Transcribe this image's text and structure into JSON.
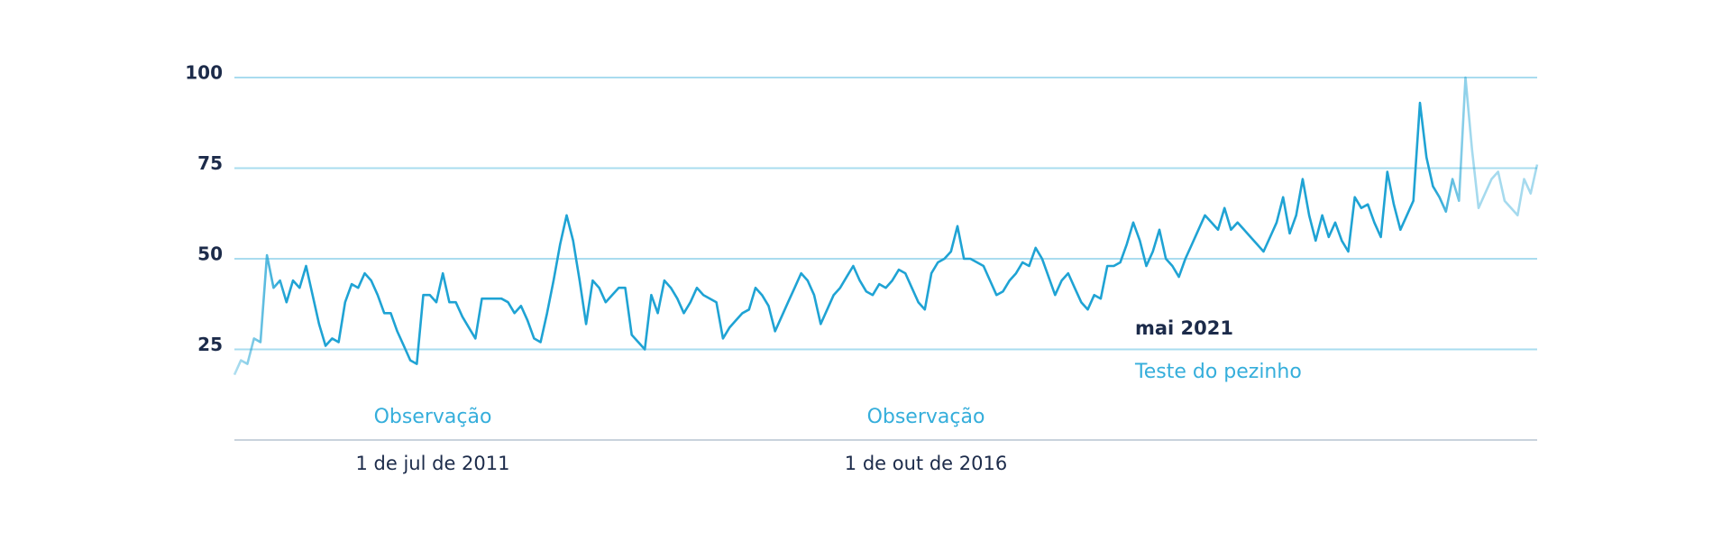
{
  "chart_data": {
    "type": "line",
    "series": [
      {
        "color": "#1fa3d4",
        "values": [
          18,
          22,
          21,
          28,
          27,
          51,
          42,
          44,
          38,
          44,
          42,
          48,
          40,
          32,
          26,
          28,
          27,
          38,
          43,
          42,
          46,
          44,
          40,
          35,
          35,
          30,
          26,
          22,
          21,
          40,
          40,
          38,
          46,
          38,
          38,
          34,
          31,
          28,
          39,
          39,
          39,
          39,
          38,
          35,
          37,
          33,
          28,
          27,
          35,
          44,
          54,
          62,
          55,
          44,
          32,
          44,
          42,
          38,
          40,
          42,
          42,
          29,
          27,
          25,
          40,
          35,
          44,
          42,
          39,
          35,
          38,
          42,
          40,
          39,
          38,
          28,
          31,
          33,
          35,
          36,
          42,
          40,
          37,
          30,
          34,
          38,
          42,
          46,
          44,
          40,
          32,
          36,
          40,
          42,
          45,
          48,
          44,
          41,
          40,
          43,
          42,
          44,
          47,
          46,
          42,
          38,
          36,
          46,
          49,
          50,
          52,
          59,
          50,
          50,
          49,
          48,
          44,
          40,
          41,
          44,
          46,
          49,
          48,
          53,
          50,
          45,
          40,
          44,
          46,
          42,
          38,
          36,
          40,
          39,
          48,
          48,
          49,
          54,
          60,
          55,
          48,
          52,
          58,
          50,
          48,
          45,
          50,
          54,
          58,
          62,
          60,
          58,
          64,
          58,
          60,
          58,
          56,
          54,
          52,
          56,
          60,
          67,
          57,
          62,
          72,
          62,
          55,
          62,
          56,
          60,
          55,
          52,
          67,
          64,
          65,
          60,
          56,
          74,
          65,
          58,
          62,
          66,
          93,
          78,
          70,
          67,
          63,
          72,
          66,
          100,
          80,
          64,
          68,
          72,
          74,
          66,
          64,
          62,
          72,
          68,
          76
        ]
      }
    ],
    "ylim": [
      0,
      100
    ],
    "yticks": [
      25,
      50,
      75,
      100
    ],
    "grid": true,
    "annotations": [
      {
        "text": "Observação",
        "date": "1 de jul de 2011"
      },
      {
        "text": "Observação",
        "date": "1 de out de 2016"
      },
      {
        "text": "Teste do pezinho",
        "date": "mai 2021"
      }
    ]
  }
}
